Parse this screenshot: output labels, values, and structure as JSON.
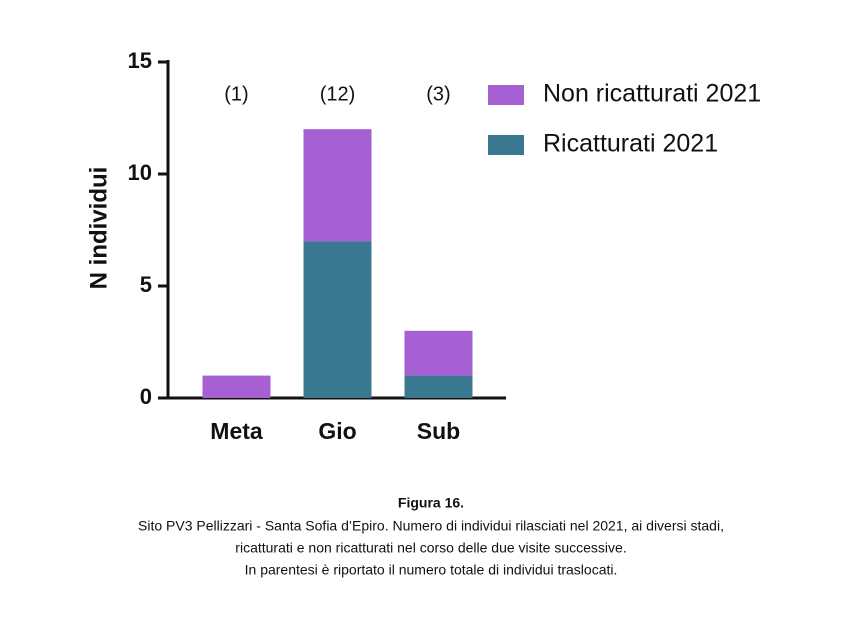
{
  "chart_data": {
    "type": "stacked_bar",
    "y_label": "N individui",
    "categories": [
      "Meta",
      "Gio",
      "Sub"
    ],
    "annotations": [
      "(1)",
      "(12)",
      "(3)"
    ],
    "series": [
      {
        "name": "Ricatturati 2021",
        "color": "#3a7891",
        "values": [
          0,
          7,
          1
        ]
      },
      {
        "name": "Non ricatturati 2021",
        "color": "#a660d4",
        "values": [
          1,
          5,
          2
        ]
      }
    ],
    "ylim": [
      0,
      15
    ],
    "yticks": [
      0,
      5,
      10,
      15
    ],
    "grid": false
  },
  "caption": {
    "title": "Figura 16.",
    "lines": [
      "Sito PV3  Pellizzari - Santa Sofia d’Epiro. Numero di individui rilasciati nel 2021, ai diversi stadi,",
      "ricatturati e non ricatturati nel corso delle due visite successive.",
      "In parentesi è riportato il numero totale di individui traslocati."
    ]
  }
}
